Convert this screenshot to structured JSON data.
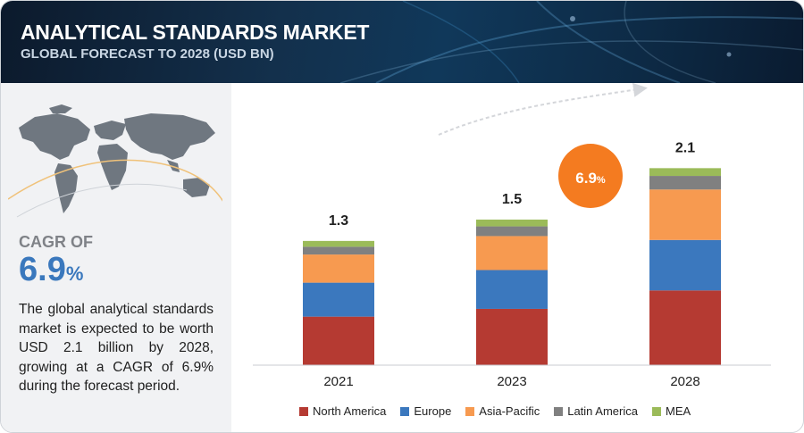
{
  "header": {
    "title": "ANALYTICAL STANDARDS MARKET",
    "subtitle": "GLOBAL FORECAST TO 2028 (USD BN)"
  },
  "sidebar": {
    "cagr_label": "CAGR OF",
    "cagr_value": "6.9",
    "cagr_unit": "%",
    "description": "The global analytical standards market is expected to be worth USD 2.1 billion by 2028, growing at a CAGR of 6.9% during the forecast period."
  },
  "badge": {
    "value": "6.9",
    "unit": "%",
    "color": "#f47b20"
  },
  "chart_data": {
    "type": "bar",
    "stacked": true,
    "categories": [
      "2021",
      "2023",
      "2028"
    ],
    "totals": [
      "1.3",
      "1.5",
      "2.1"
    ],
    "ylim": [
      0,
      2.3
    ],
    "grid": false,
    "legend_position": "bottom",
    "series": [
      {
        "name": "North America",
        "color": "#b53a32",
        "values": [
          0.5,
          0.58,
          0.77
        ]
      },
      {
        "name": "Europe",
        "color": "#3b78be",
        "values": [
          0.35,
          0.4,
          0.52
        ]
      },
      {
        "name": "Asia-Pacific",
        "color": "#f79a50",
        "values": [
          0.29,
          0.35,
          0.52
        ]
      },
      {
        "name": "Latin America",
        "color": "#808080",
        "values": [
          0.08,
          0.1,
          0.14
        ]
      },
      {
        "name": "MEA",
        "color": "#9bbb59",
        "values": [
          0.06,
          0.07,
          0.08
        ]
      }
    ]
  }
}
